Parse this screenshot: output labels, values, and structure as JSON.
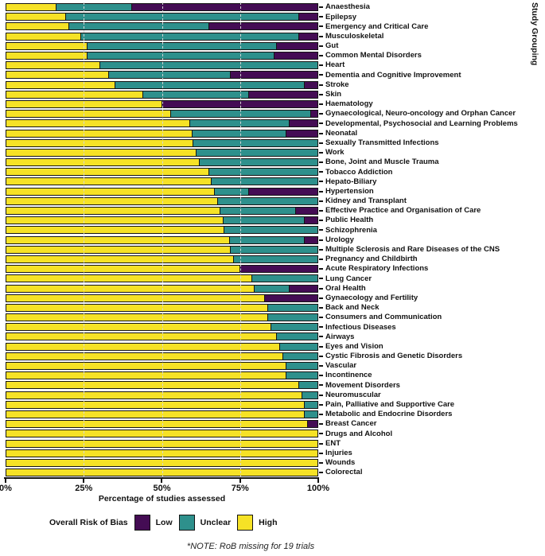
{
  "chart_data": {
    "type": "bar",
    "orientation": "horizontal-stacked",
    "xlabel": "Percentage of studies assessed",
    "ylabel": "Study Grouping",
    "note": "*NOTE: RoB missing for 19 trials",
    "legend_title": "Overall Risk of Bias",
    "xlim": [
      0,
      100
    ],
    "x_ticks": [
      "0%",
      "25%",
      "50%",
      "75%",
      "100%"
    ],
    "x_tick_values": [
      0,
      25,
      50,
      75,
      100
    ],
    "grid_at": [
      25,
      50,
      75
    ],
    "grid": "dashed-vertical",
    "legend_position": "bottom",
    "legend": [
      {
        "label": "Low",
        "color": "#440C54"
      },
      {
        "label": "Unclear",
        "color": "#2E908C"
      },
      {
        "label": "High",
        "color": "#F6E226"
      }
    ],
    "categories": [
      "Anaesthesia",
      "Epilepsy",
      "Emergency and Critical Care",
      "Musculoskeletal",
      "Gut",
      "Common Mental Disorders",
      "Heart",
      "Dementia and Cognitive Improvement",
      "Stroke",
      "Skin",
      "Haematology",
      "Gynaecological, Neuro-oncology and Orphan Cancer",
      "Developmental, Psychosocial and Learning Problems",
      "Neonatal",
      "Sexually Transmitted Infections",
      "Work",
      "Bone, Joint and Muscle Trauma",
      "Tobacco Addiction",
      "Hepato-Biliary",
      "Hypertension",
      "Kidney and Transplant",
      "Effective Practice and Organisation of Care",
      "Public Health",
      "Schizophrenia",
      "Urology",
      "Multiple Sclerosis and Rare Diseases of the CNS",
      "Pregnancy and Childbirth",
      "Acute Respiratory Infections",
      "Lung Cancer",
      "Oral Health",
      "Gynaecology and Fertility",
      "Back and Neck",
      "Consumers and Communication",
      "Infectious Diseases",
      "Airways",
      "Eyes and Vision",
      "Cystic Fibrosis and Genetic Disorders",
      "Vascular",
      "Incontinence",
      "Movement Disorders",
      "Neuromuscular",
      "Pain, Palliative and Supportive Care",
      "Metabolic and Endocrine Disorders",
      "Breast Cancer",
      "Drugs and Alcohol",
      "ENT",
      "Injuries",
      "Wounds",
      "Colorectal"
    ],
    "series": [
      {
        "name": "High",
        "color": "#F6E226",
        "values": [
          16,
          19,
          20,
          24,
          26,
          26,
          30,
          33,
          35,
          44,
          50,
          53,
          59,
          60,
          60,
          61,
          62,
          65,
          66,
          67,
          68,
          69,
          70,
          70,
          72,
          72,
          73,
          75,
          79,
          80,
          83,
          84,
          84,
          85,
          87,
          88,
          89,
          90,
          90,
          94,
          95,
          96,
          96,
          97,
          100,
          100,
          100,
          100,
          100
        ]
      },
      {
        "name": "Unclear",
        "color": "#2E908C",
        "values": [
          24,
          75,
          45,
          70,
          61,
          60,
          70,
          39,
          61,
          34,
          0,
          45,
          32,
          30,
          40,
          39,
          38,
          35,
          34,
          11,
          32,
          24,
          26,
          30,
          24,
          28,
          27,
          0,
          21,
          11,
          0,
          16,
          16,
          15,
          13,
          12,
          11,
          10,
          10,
          6,
          5,
          4,
          4,
          0,
          0,
          0,
          0,
          0,
          0
        ]
      },
      {
        "name": "Low",
        "color": "#440C54",
        "values": [
          60,
          6,
          35,
          6,
          13,
          14,
          0,
          28,
          4,
          22,
          50,
          2,
          9,
          10,
          0,
          0,
          0,
          0,
          0,
          22,
          0,
          7,
          4,
          0,
          4,
          0,
          0,
          25,
          0,
          9,
          17,
          0,
          0,
          0,
          0,
          0,
          0,
          0,
          0,
          0,
          0,
          0,
          0,
          3,
          0,
          0,
          0,
          0,
          0
        ]
      }
    ]
  }
}
